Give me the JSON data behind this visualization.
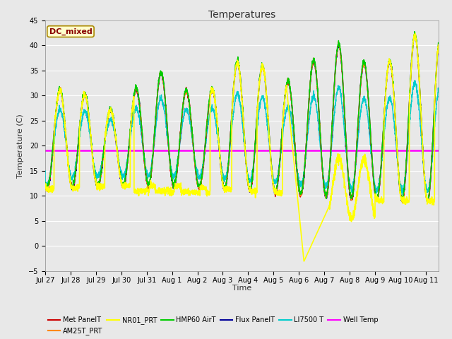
{
  "title": "Temperatures",
  "xlabel": "Time",
  "ylabel": "Temperature (C)",
  "ylim": [
    -5,
    45
  ],
  "well_temp_value": 19.0,
  "x_tick_labels": [
    "Jul 27",
    "Jul 28",
    "Jul 29",
    "Jul 30",
    "Jul 31",
    "Aug 1",
    "Aug 2",
    "Aug 3",
    "Aug 4",
    "Aug 5",
    "Aug 6",
    "Aug 7",
    "Aug 8",
    "Aug 9",
    "Aug 10",
    "Aug 11"
  ],
  "legend_entries": [
    {
      "label": "Met PanelT",
      "color": "#cc0000"
    },
    {
      "label": "AM25T_PRT",
      "color": "#ff8800"
    },
    {
      "label": "NR01_PRT",
      "color": "#ffff00"
    },
    {
      "label": "HMP60 AirT",
      "color": "#00cc00"
    },
    {
      "label": "Flux PanelT",
      "color": "#000099"
    },
    {
      "label": "LI7500 T",
      "color": "#00cccc"
    },
    {
      "label": "Well Temp",
      "color": "#ff00ff"
    }
  ],
  "dc_mixed_box_facecolor": "#ffffcc",
  "dc_mixed_text_color": "#880000",
  "dc_mixed_edge_color": "#aa8800",
  "plot_bg_color": "#e8e8e8",
  "fig_bg_color": "#e8e8e8",
  "grid_color": "#ffffff",
  "title_fontsize": 10,
  "axis_label_fontsize": 8,
  "tick_fontsize": 7,
  "legend_fontsize": 7
}
